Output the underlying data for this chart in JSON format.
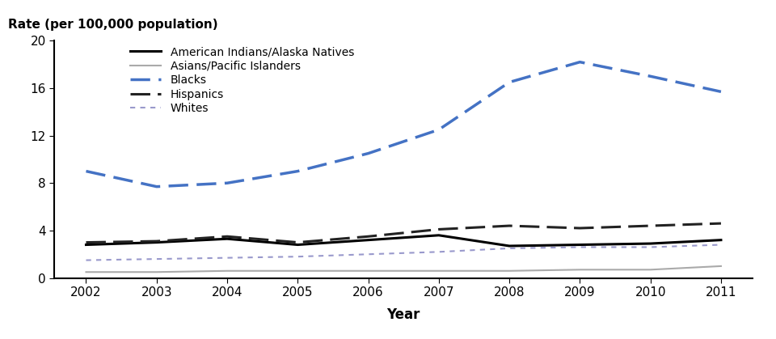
{
  "years": [
    2002,
    2003,
    2004,
    2005,
    2006,
    2007,
    2008,
    2009,
    2010,
    2011
  ],
  "american_indians": [
    2.8,
    3.0,
    3.3,
    2.8,
    3.2,
    3.6,
    2.7,
    2.8,
    2.9,
    3.2
  ],
  "asians": [
    0.5,
    0.5,
    0.6,
    0.6,
    0.6,
    0.6,
    0.6,
    0.7,
    0.7,
    1.0
  ],
  "blacks": [
    9.0,
    7.7,
    8.0,
    9.0,
    10.5,
    12.5,
    16.5,
    18.2,
    17.0,
    15.7
  ],
  "hispanics": [
    3.0,
    3.1,
    3.5,
    3.0,
    3.5,
    4.1,
    4.4,
    4.2,
    4.4,
    4.6
  ],
  "whites": [
    1.5,
    1.6,
    1.7,
    1.8,
    2.0,
    2.2,
    2.5,
    2.6,
    2.6,
    2.8
  ],
  "colors": {
    "american_indians": "#000000",
    "asians": "#aaaaaa",
    "blacks": "#4472c4",
    "hispanics": "#222222",
    "whites": "#9999cc"
  },
  "ylabel": "Rate (per 100,000 population)",
  "xlabel": "Year",
  "ylim": [
    0,
    20
  ],
  "yticks": [
    0,
    4,
    8,
    12,
    16,
    20
  ],
  "legend_labels": [
    "American Indians/Alaska Natives",
    "Asians/Pacific Islanders",
    "Blacks",
    "Hispanics",
    "Whites"
  ],
  "background_color": "#ffffff"
}
